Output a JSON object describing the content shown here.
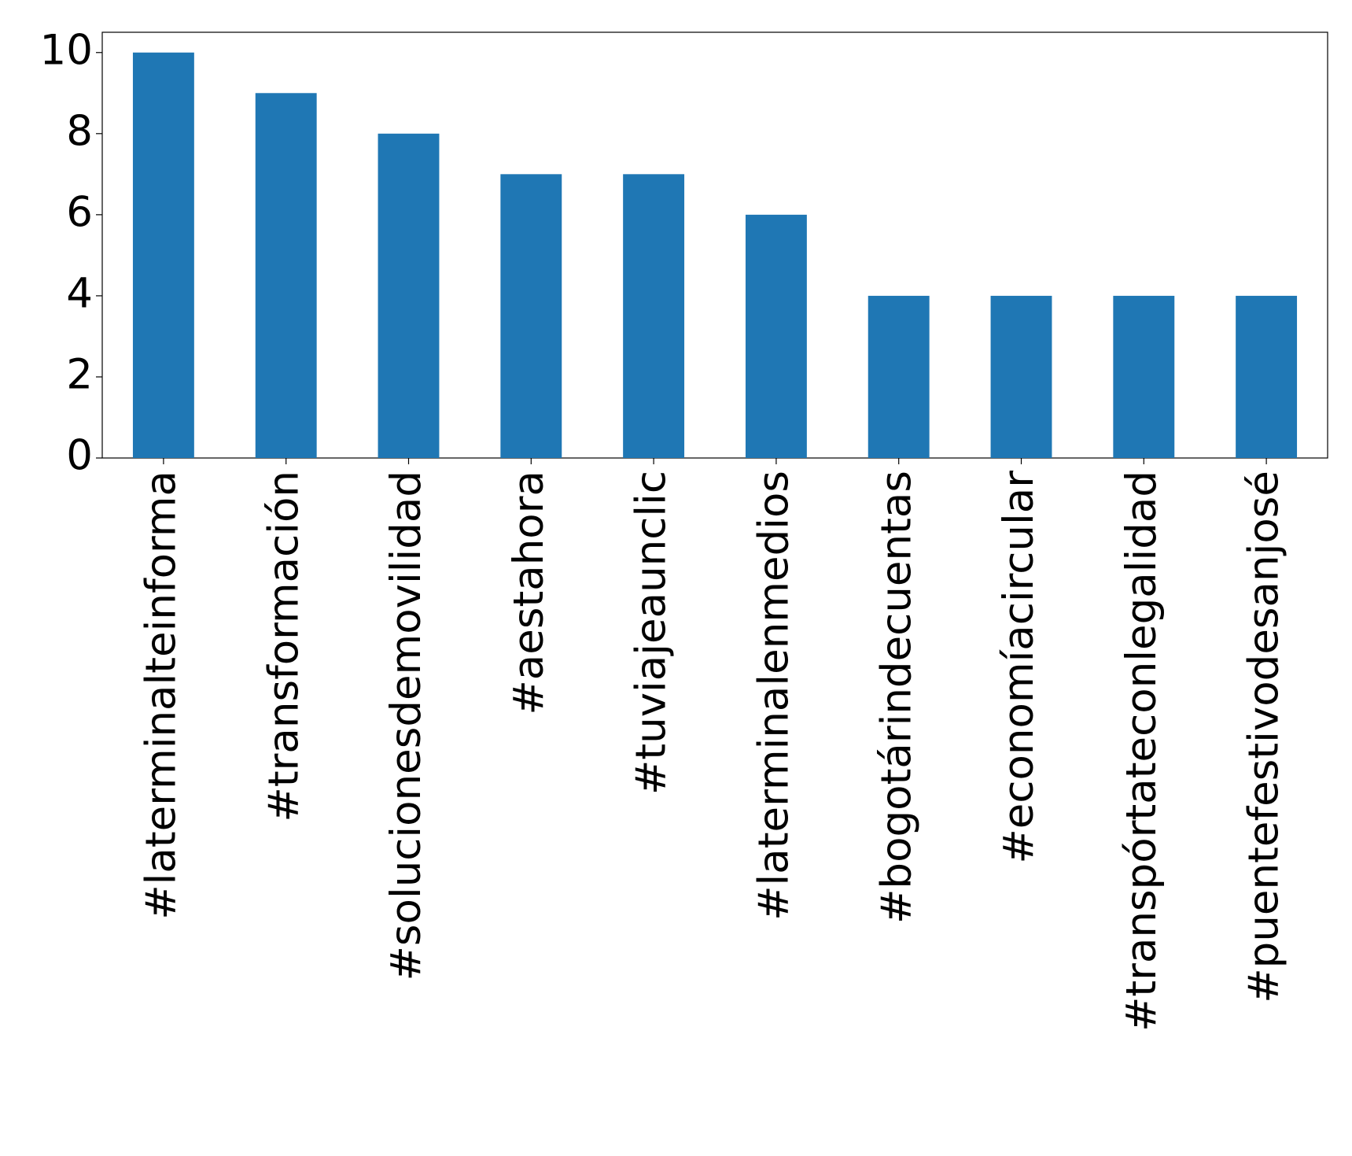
{
  "chart_data": {
    "type": "bar",
    "categories": [
      "#laterminalteinforma",
      "#transformación",
      "#solucionesdemovilidad",
      "#aestahora",
      "#tuviajeaunclic",
      "#laterminalenmedios",
      "#bogotárindecuentas",
      "#economíacircular",
      "#transpórtateconlegalidad",
      "#puentefestivodesanjosé"
    ],
    "values": [
      10,
      9,
      8,
      7,
      7,
      6,
      4,
      4,
      4,
      4
    ],
    "color": "#1f77b4",
    "ylim": [
      0,
      10.5
    ],
    "yticks": [
      0,
      2,
      4,
      6,
      8,
      10
    ],
    "grid": false
  }
}
